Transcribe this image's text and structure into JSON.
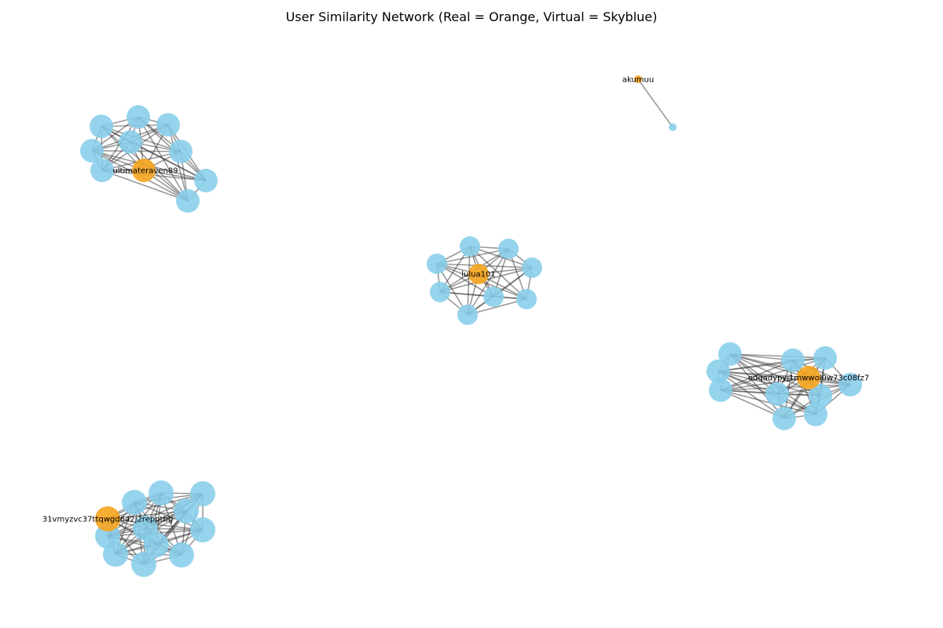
{
  "title": "User Similarity Network (Real = Orange, Virtual = Skyblue)",
  "colors": {
    "real": "#f5a623",
    "virtual": "#87ceeb",
    "edge": "#333333"
  },
  "legend_terms": {
    "real": "Real",
    "virtual": "Virtual"
  },
  "clusters": [
    {
      "id": "ultimateraven89",
      "real_user": "ultimateraven89",
      "virtual_user_count": 10
    },
    {
      "id": "akumuu",
      "real_user": "akumuu",
      "virtual_user_count": 1
    },
    {
      "id": "lulua101",
      "real_user": "lulua101",
      "virtual_user_count": 9
    },
    {
      "id": "odqadypyj1mwwol0w73c08fz7",
      "real_user": "odqadypyj1mwwol0w73c08fz7",
      "virtual_user_count": 12
    },
    {
      "id": "31vmyzvc37ttqwgd642j2repptbg",
      "real_user": "31vmyzvc37ttqwgd642j2repptbg",
      "virtual_user_count": 13
    }
  ]
}
